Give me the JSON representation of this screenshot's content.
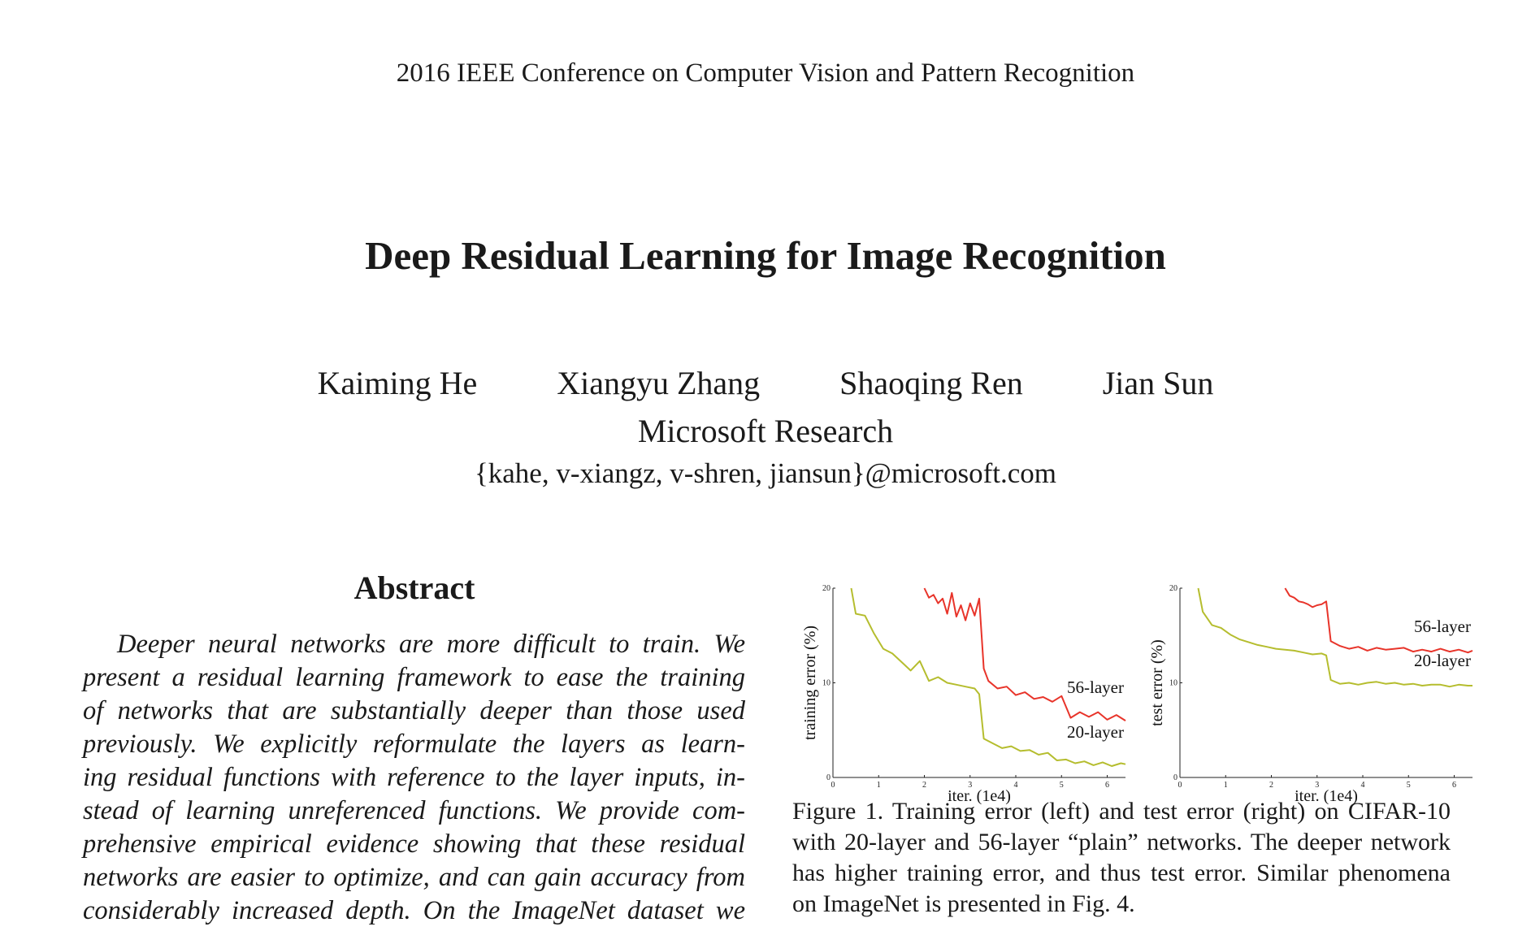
{
  "header": {
    "venue": "2016 IEEE Conference on Computer Vision and Pattern Recognition"
  },
  "paper": {
    "title": "Deep Residual Learning for Image Recognition",
    "authors": [
      "Kaiming He",
      "Xiangyu Zhang",
      "Shaoqing Ren",
      "Jian Sun"
    ],
    "affiliation": "Microsoft Research",
    "email": "{kahe, v-xiangz, v-shren, jiansun}@microsoft.com"
  },
  "abstract": {
    "heading": "Abstract",
    "lines": [
      "Deeper neural networks are more difficult to train. We",
      "present a residual learning framework to ease the training",
      "of networks that are substantially deeper than those used",
      "previously. We explicitly reformulate the layers as learn-",
      "ing residual functions with reference to the layer inputs, in-",
      "stead of learning unreferenced functions. We provide com-",
      "prehensive empirical evidence showing that these residual",
      "networks are easier to optimize, and can gain accuracy from",
      "considerably increased depth. On the ImageNet dataset we"
    ]
  },
  "figure": {
    "caption_lines": [
      "Figure 1. Training error (left) and test error (right) on CIFAR-10",
      "with 20-layer and 56-layer “plain” networks. The deeper network",
      "has higher training error, and thus test error. Similar phenomena",
      "on ImageNet is presented in Fig. 4."
    ]
  },
  "chart_data": [
    {
      "type": "line",
      "xlabel": "iter. (1e4)",
      "ylabel": "training error (%)",
      "xlim": [
        0,
        6.4
      ],
      "ylim": [
        0,
        20
      ],
      "xticks": [
        "0",
        "1",
        "2",
        "3",
        "4",
        "5",
        "6"
      ],
      "yticks": [
        "0",
        "10",
        "20"
      ],
      "series": [
        {
          "name": "56-layer",
          "color": "#e8342a",
          "x": [
            2.0,
            2.1,
            2.2,
            2.3,
            2.4,
            2.5,
            2.6,
            2.7,
            2.8,
            2.9,
            3.0,
            3.1,
            3.2,
            3.3,
            3.4,
            3.6,
            3.8,
            4.0,
            4.2,
            4.4,
            4.6,
            4.8,
            5.0,
            5.2,
            5.4,
            5.6,
            5.8,
            6.0,
            6.2,
            6.4
          ],
          "y": [
            20.0,
            19.0,
            19.3,
            18.4,
            18.9,
            17.3,
            19.5,
            17.0,
            18.2,
            16.6,
            18.4,
            17.1,
            18.9,
            11.5,
            10.2,
            9.4,
            9.6,
            8.7,
            9.0,
            8.3,
            8.5,
            8.0,
            8.6,
            6.3,
            6.9,
            6.4,
            6.9,
            6.1,
            6.6,
            6.0
          ]
        },
        {
          "name": "20-layer",
          "color": "#b5bd2e",
          "x": [
            0.4,
            0.5,
            0.7,
            0.9,
            1.1,
            1.3,
            1.5,
            1.7,
            1.9,
            2.1,
            2.3,
            2.5,
            2.7,
            2.9,
            3.1,
            3.2,
            3.3,
            3.5,
            3.7,
            3.9,
            4.1,
            4.3,
            4.5,
            4.7,
            4.9,
            5.1,
            5.3,
            5.5,
            5.7,
            5.9,
            6.1,
            6.3,
            6.4
          ],
          "y": [
            20.0,
            17.3,
            17.1,
            15.2,
            13.6,
            13.1,
            12.2,
            11.3,
            12.3,
            10.2,
            10.6,
            10.0,
            9.8,
            9.6,
            9.4,
            8.8,
            4.1,
            3.6,
            3.1,
            3.3,
            2.8,
            2.9,
            2.4,
            2.6,
            1.8,
            1.9,
            1.5,
            1.7,
            1.3,
            1.6,
            1.2,
            1.5,
            1.4
          ]
        }
      ]
    },
    {
      "type": "line",
      "xlabel": "iter. (1e4)",
      "ylabel": "test error (%)",
      "xlim": [
        0,
        6.4
      ],
      "ylim": [
        0,
        20
      ],
      "xticks": [
        "0",
        "1",
        "2",
        "3",
        "4",
        "5",
        "6"
      ],
      "yticks": [
        "0",
        "10",
        "20"
      ],
      "series": [
        {
          "name": "56-layer",
          "color": "#e8342a",
          "x": [
            2.3,
            2.4,
            2.5,
            2.6,
            2.7,
            2.8,
            2.9,
            3.0,
            3.1,
            3.2,
            3.3,
            3.5,
            3.7,
            3.9,
            4.1,
            4.3,
            4.5,
            4.7,
            4.9,
            5.1,
            5.3,
            5.5,
            5.7,
            5.9,
            6.1,
            6.3,
            6.4
          ],
          "y": [
            20.0,
            19.2,
            19.0,
            18.6,
            18.5,
            18.3,
            18.0,
            18.2,
            18.3,
            18.6,
            14.4,
            13.9,
            13.6,
            13.8,
            13.4,
            13.7,
            13.5,
            13.6,
            13.7,
            13.3,
            13.5,
            13.3,
            13.6,
            13.3,
            13.5,
            13.2,
            13.4
          ]
        },
        {
          "name": "20-layer",
          "color": "#b5bd2e",
          "x": [
            0.4,
            0.5,
            0.7,
            0.9,
            1.1,
            1.3,
            1.5,
            1.7,
            1.9,
            2.1,
            2.3,
            2.5,
            2.7,
            2.9,
            3.1,
            3.2,
            3.3,
            3.5,
            3.7,
            3.9,
            4.1,
            4.3,
            4.5,
            4.7,
            4.9,
            5.1,
            5.3,
            5.5,
            5.7,
            5.9,
            6.1,
            6.3,
            6.4
          ],
          "y": [
            20.0,
            17.5,
            16.1,
            15.8,
            15.1,
            14.6,
            14.3,
            14.0,
            13.8,
            13.6,
            13.5,
            13.4,
            13.2,
            13.0,
            13.1,
            12.9,
            10.3,
            9.9,
            10.0,
            9.8,
            10.0,
            10.1,
            9.9,
            10.0,
            9.8,
            9.9,
            9.7,
            9.8,
            9.8,
            9.6,
            9.8,
            9.7,
            9.7
          ]
        }
      ]
    }
  ]
}
